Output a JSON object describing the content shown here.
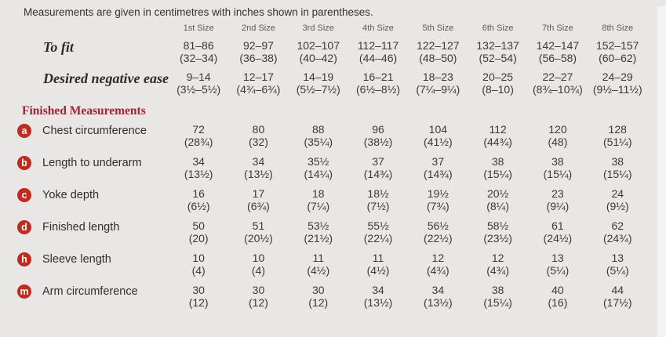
{
  "note": "Measurements are given in centimetres with inches shown in parentheses.",
  "columns": [
    "1st Size",
    "2nd Size",
    "3rd Size",
    "4th Size",
    "5th Size",
    "6th Size",
    "7th Size",
    "8th Size"
  ],
  "fit_rows": [
    {
      "label": "To fit",
      "cm": [
        "81–86",
        "92–97",
        "102–107",
        "112–117",
        "122–127",
        "132–137",
        "142–147",
        "152–157"
      ],
      "in": [
        "(32–34)",
        "(36–38)",
        "(40–42)",
        "(44–46)",
        "(48–50)",
        "(52–54)",
        "(56–58)",
        "(60–62)"
      ]
    },
    {
      "label": "Desired negative ease",
      "cm": [
        "9–14",
        "12–17",
        "14–19",
        "16–21",
        "18–23",
        "20–25",
        "22–27",
        "24–29"
      ],
      "in": [
        "(3½–5½)",
        "(4¾–6¾)",
        "(5½–7½)",
        "(6½–8½)",
        "(7¼–9¼)",
        "(8–10)",
        "(8¾–10¾)",
        "(9½–11½)"
      ]
    }
  ],
  "section_title": "Finished Measurements",
  "measurement_rows": [
    {
      "badge": "a",
      "label": "Chest circumference",
      "cm": [
        "72",
        "80",
        "88",
        "96",
        "104",
        "112",
        "120",
        "128"
      ],
      "in": [
        "(28¾)",
        "(32)",
        "(35¼)",
        "(38½)",
        "(41½)",
        "(44¾)",
        "(48)",
        "(51¼)"
      ]
    },
    {
      "badge": "b",
      "label": "Length to underarm",
      "cm": [
        "34",
        "34",
        "35½",
        "37",
        "37",
        "38",
        "38",
        "38"
      ],
      "in": [
        "(13½)",
        "(13½)",
        "(14¼)",
        "(14¾)",
        "(14¾)",
        "(15¼)",
        "(15¼)",
        "(15¼)"
      ]
    },
    {
      "badge": "c",
      "label": "Yoke depth",
      "cm": [
        "16",
        "17",
        "18",
        "18½",
        "19½",
        "20½",
        "23",
        "24"
      ],
      "in": [
        "(6½)",
        "(6¾)",
        "(7¼)",
        "(7½)",
        "(7¾)",
        "(8¼)",
        "(9¼)",
        "(9½)"
      ]
    },
    {
      "badge": "d",
      "label": "Finished length",
      "cm": [
        "50",
        "51",
        "53½",
        "55½",
        "56½",
        "58½",
        "61",
        "62"
      ],
      "in": [
        "(20)",
        "(20½)",
        "(21½)",
        "(22¼)",
        "(22½)",
        "(23½)",
        "(24½)",
        "(24¾)"
      ]
    },
    {
      "badge": "h",
      "label": "Sleeve length",
      "cm": [
        "10",
        "10",
        "11",
        "11",
        "12",
        "12",
        "13",
        "13"
      ],
      "in": [
        "(4)",
        "(4)",
        "(4½)",
        "(4½)",
        "(4¾)",
        "(4¾)",
        "(5¼)",
        "(5¼)"
      ]
    },
    {
      "badge": "m",
      "label": "Arm circumference",
      "cm": [
        "30",
        "30",
        "30",
        "34",
        "34",
        "38",
        "40",
        "44"
      ],
      "in": [
        "(12)",
        "(12)",
        "(12)",
        "(13½)",
        "(13½)",
        "(15¼)",
        "(16)",
        "(17½)"
      ]
    }
  ],
  "colors": {
    "background": "#e8e7e5",
    "badge_red": "#c22a1d",
    "heading_red": "#a72134",
    "text": "#3b3a38",
    "muted_header": "#5c5b59"
  }
}
